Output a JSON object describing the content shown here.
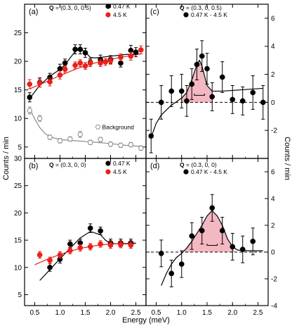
{
  "figure": {
    "xlabel": "Energy (meV)",
    "ylabel_left": "Counts / min",
    "ylabel_right": "Counts / min"
  },
  "colors": {
    "black": "#000000",
    "red": "#e8211c",
    "gray": "#8c8c8c",
    "fill": "#f4b8c2"
  },
  "chart_data": [
    {
      "id": "a",
      "type": "scatter",
      "panel_label": "(a)",
      "q_prefix": "Q",
      "q_value": " = (0.3, 0, 0.5)",
      "xlim": [
        0.3,
        2.7
      ],
      "ylim": [
        3,
        30
      ],
      "xticks": [
        "0.5",
        "1.0",
        "1.5",
        "2.0",
        "2.5"
      ],
      "yticks": [
        "5",
        "10",
        "15",
        "20",
        "25",
        "30"
      ],
      "legend_position": "top-right",
      "series": [
        {
          "name": "0.47 K",
          "color": "#000000",
          "marker": "filled",
          "x": [
            0.4,
            0.6,
            0.8,
            1.0,
            1.1,
            1.3,
            1.4,
            1.5,
            1.6,
            1.8,
            2.0,
            2.2,
            2.4,
            2.5
          ],
          "y": [
            13.7,
            16.3,
            17.2,
            18.7,
            19.7,
            22.1,
            22.1,
            21.5,
            19.8,
            20.3,
            20.3,
            19.7,
            21.9,
            21.6
          ],
          "err": [
            0.8,
            0.8,
            0.7,
            0.8,
            0.7,
            0.8,
            0.8,
            0.8,
            0.7,
            0.8,
            0.7,
            0.7,
            0.9,
            0.8
          ],
          "fit": [
            [
              0.4,
              13.5
            ],
            [
              0.6,
              15.8
            ],
            [
              0.8,
              17.4
            ],
            [
              1.0,
              18.6
            ],
            [
              1.1,
              19.4
            ],
            [
              1.2,
              20.6
            ],
            [
              1.3,
              21.7
            ],
            [
              1.4,
              22.2
            ],
            [
              1.5,
              21.6
            ],
            [
              1.6,
              20.7
            ],
            [
              1.7,
              20.6
            ],
            [
              2.0,
              20.9
            ],
            [
              2.3,
              21.2
            ],
            [
              2.6,
              21.3
            ]
          ]
        },
        {
          "name": "4.5 K",
          "color": "#e8211c",
          "marker": "filled",
          "x": [
            0.4,
            0.6,
            0.8,
            1.0,
            1.1,
            1.3,
            1.4,
            1.5,
            1.6,
            1.8,
            1.9,
            2.0,
            2.2,
            2.4,
            2.6
          ],
          "y": [
            16.0,
            16.2,
            16.4,
            17.6,
            18.6,
            19.3,
            19.7,
            19.2,
            19.7,
            19.7,
            19.9,
            20.1,
            20.7,
            20.9,
            22.0
          ],
          "err": [
            0.8,
            0.7,
            0.7,
            0.7,
            0.6,
            0.6,
            0.6,
            0.6,
            0.6,
            0.6,
            0.6,
            0.6,
            0.6,
            0.7,
            0.7
          ],
          "fit": [
            [
              0.4,
              15.2
            ],
            [
              0.7,
              16.3
            ],
            [
              1.0,
              17.5
            ],
            [
              1.3,
              18.6
            ],
            [
              1.6,
              19.5
            ],
            [
              1.9,
              20.2
            ],
            [
              2.2,
              20.7
            ],
            [
              2.6,
              21.3
            ]
          ]
        },
        {
          "name": "Background",
          "color": "#8c8c8c",
          "marker": "open",
          "x": [
            0.4,
            0.6,
            0.8,
            1.0,
            1.2,
            1.4,
            1.6,
            1.8,
            2.0,
            2.2,
            2.4,
            2.6
          ],
          "y": [
            11.4,
            10.0,
            6.7,
            6.1,
            6.4,
            7.2,
            5.8,
            6.3,
            5.5,
            5.3,
            5.4,
            4.8
          ],
          "err": [
            0.6,
            0.5,
            0.4,
            0.4,
            0.4,
            0.5,
            0.4,
            0.4,
            0.4,
            0.4,
            0.4,
            0.4
          ],
          "fit": [
            [
              0.4,
              11.8
            ],
            [
              0.5,
              9.9
            ],
            [
              0.6,
              8.4
            ],
            [
              0.7,
              7.4
            ],
            [
              0.8,
              6.8
            ],
            [
              1.0,
              6.3
            ],
            [
              1.3,
              6.1
            ],
            [
              1.6,
              5.9
            ],
            [
              2.0,
              5.6
            ],
            [
              2.3,
              5.3
            ],
            [
              2.6,
              5.1
            ]
          ]
        }
      ]
    },
    {
      "id": "b",
      "type": "scatter",
      "panel_label": "(b)",
      "q_prefix": "Q",
      "q_value": " = (0.3, 0, 0)",
      "xlim": [
        0.3,
        2.7
      ],
      "ylim": [
        3,
        30
      ],
      "xticks": [
        "0.5",
        "1.0",
        "1.5",
        "2.0",
        "2.5"
      ],
      "yticks": [
        "5",
        "10",
        "15",
        "20",
        "25",
        "30"
      ],
      "legend_position": "top-right",
      "series": [
        {
          "name": "0.47 K",
          "color": "#000000",
          "marker": "filled",
          "x": [
            0.8,
            1.0,
            1.2,
            1.4,
            1.6,
            1.8,
            2.0,
            2.2,
            2.4
          ],
          "y": [
            10.0,
            11.5,
            14.3,
            14.5,
            17.2,
            16.7,
            14.5,
            14.5,
            14.5
          ],
          "err": [
            0.7,
            0.7,
            0.7,
            0.7,
            0.8,
            0.7,
            0.7,
            0.7,
            0.7
          ],
          "fit": [
            [
              0.6,
              7.6
            ],
            [
              0.8,
              9.6
            ],
            [
              1.0,
              11.6
            ],
            [
              1.2,
              13.5
            ],
            [
              1.4,
              15.4
            ],
            [
              1.6,
              16.6
            ],
            [
              1.8,
              16.0
            ],
            [
              1.9,
              15.0
            ],
            [
              2.0,
              14.4
            ],
            [
              2.2,
              14.3
            ],
            [
              2.5,
              14.4
            ]
          ]
        },
        {
          "name": "4.5 K",
          "color": "#e8211c",
          "marker": "filled",
          "x": [
            0.6,
            0.8,
            1.0,
            1.2,
            1.4,
            1.6,
            1.8,
            2.0,
            2.2,
            2.4
          ],
          "y": [
            12.3,
            11.3,
            12.3,
            13.1,
            13.6,
            13.8,
            14.3,
            14.1,
            14.2,
            14.1
          ],
          "err": [
            0.6,
            0.6,
            0.6,
            0.6,
            0.6,
            0.6,
            0.6,
            0.6,
            0.6,
            0.6
          ],
          "fit": [
            [
              0.5,
              10.5
            ],
            [
              0.8,
              11.7
            ],
            [
              1.1,
              12.7
            ],
            [
              1.4,
              13.5
            ],
            [
              1.7,
              14.0
            ],
            [
              2.0,
              14.3
            ],
            [
              2.3,
              14.4
            ],
            [
              2.5,
              14.5
            ]
          ]
        }
      ]
    },
    {
      "id": "c",
      "type": "scatter",
      "panel_label": "(c)",
      "q_prefix": "Q",
      "q_value": " = (0.3, 0, 0.5)",
      "xlim": [
        0.3,
        2.7
      ],
      "ylim": [
        -4,
        7
      ],
      "xticks": [
        "0.5",
        "1.0",
        "1.5",
        "2.0",
        "2.5"
      ],
      "yticks": [
        "-4",
        "-2",
        "0",
        "2",
        "4",
        "6"
      ],
      "legend_position": "top-right",
      "series": [
        {
          "name": "0.47 K - 4.5 K",
          "color": "#000000",
          "marker": "filled",
          "x": [
            0.4,
            0.6,
            0.8,
            1.0,
            1.1,
            1.2,
            1.3,
            1.4,
            1.5,
            1.6,
            1.8,
            2.0,
            2.2,
            2.4,
            2.6
          ],
          "y": [
            -2.4,
            0.0,
            0.8,
            0.8,
            0.1,
            1.3,
            2.7,
            3.3,
            2.4,
            0.4,
            1.8,
            0.2,
            0.1,
            0.7,
            0.0
          ],
          "err": [
            1.2,
            1.2,
            1.1,
            1.2,
            1.1,
            1.1,
            1.1,
            1.1,
            1.1,
            1.0,
            1.1,
            1.0,
            1.0,
            1.2,
            1.2
          ],
          "fit": [
            [
              0.4,
              -2.5
            ],
            [
              0.5,
              -1.5
            ],
            [
              0.6,
              -0.9
            ],
            [
              0.8,
              -0.2
            ],
            [
              1.0,
              0.3
            ],
            [
              1.1,
              0.7
            ],
            [
              1.2,
              1.6
            ],
            [
              1.3,
              2.7
            ],
            [
              1.35,
              3.0
            ],
            [
              1.4,
              2.6
            ],
            [
              1.5,
              1.2
            ],
            [
              1.6,
              0.8
            ],
            [
              1.8,
              0.8
            ],
            [
              2.2,
              0.9
            ],
            [
              2.6,
              1.0
            ]
          ]
        }
      ],
      "peak": {
        "baseline": 0.0,
        "points": [
          [
            1.0,
            0.3
          ],
          [
            1.1,
            0.7
          ],
          [
            1.2,
            1.6
          ],
          [
            1.3,
            2.7
          ],
          [
            1.35,
            3.0
          ],
          [
            1.4,
            2.6
          ],
          [
            1.5,
            1.2
          ],
          [
            1.6,
            0.8
          ],
          [
            1.62,
            0.0
          ]
        ]
      },
      "width_bar": {
        "x": [
          1.25,
          1.45
        ],
        "y": 0.5
      }
    },
    {
      "id": "d",
      "type": "scatter",
      "panel_label": "(d)",
      "q_prefix": "Q",
      "q_value": " = (0.3, 0, 0)",
      "xlim": [
        0.3,
        2.7
      ],
      "ylim": [
        -4,
        7
      ],
      "xticks": [
        "0.5",
        "1.0",
        "1.5",
        "2.0",
        "2.5"
      ],
      "yticks": [
        "-4",
        "-2",
        "0",
        "2",
        "4",
        "6"
      ],
      "legend_position": "top-right",
      "series": [
        {
          "name": "0.47 K - 4.5 K",
          "color": "#000000",
          "marker": "filled",
          "x": [
            0.6,
            0.8,
            1.0,
            1.2,
            1.4,
            1.6,
            1.8,
            2.0,
            2.2,
            2.4
          ],
          "y": [
            -0.1,
            -1.6,
            -0.9,
            1.2,
            1.6,
            3.3,
            1.6,
            0.4,
            0.2,
            0.8
          ],
          "err": [
            1.0,
            1.0,
            1.0,
            1.0,
            1.0,
            1.0,
            1.0,
            1.0,
            1.0,
            1.0
          ],
          "fit": [
            [
              0.6,
              -2.5
            ],
            [
              0.7,
              -1.6
            ],
            [
              0.8,
              -0.9
            ],
            [
              0.9,
              -0.4
            ],
            [
              1.0,
              -0.1
            ],
            [
              1.1,
              0.3
            ],
            [
              1.2,
              0.8
            ],
            [
              1.3,
              1.4
            ],
            [
              1.4,
              2.0
            ],
            [
              1.5,
              2.7
            ],
            [
              1.6,
              3.1
            ],
            [
              1.7,
              2.7
            ],
            [
              1.8,
              2.0
            ],
            [
              1.9,
              1.0
            ],
            [
              2.0,
              0.4
            ],
            [
              2.1,
              0.15
            ],
            [
              2.3,
              0.1
            ],
            [
              2.6,
              0.1
            ]
          ]
        }
      ],
      "peak": {
        "baseline": 0.0,
        "points": [
          [
            1.05,
            0.0
          ],
          [
            1.1,
            0.3
          ],
          [
            1.2,
            0.8
          ],
          [
            1.3,
            1.4
          ],
          [
            1.4,
            2.0
          ],
          [
            1.5,
            2.7
          ],
          [
            1.6,
            3.1
          ],
          [
            1.7,
            2.7
          ],
          [
            1.8,
            2.0
          ],
          [
            1.9,
            1.0
          ],
          [
            2.0,
            0.4
          ],
          [
            2.05,
            0.0
          ]
        ]
      },
      "width_bar": {
        "x": [
          1.5,
          1.7
        ],
        "y": 0.5
      }
    }
  ]
}
